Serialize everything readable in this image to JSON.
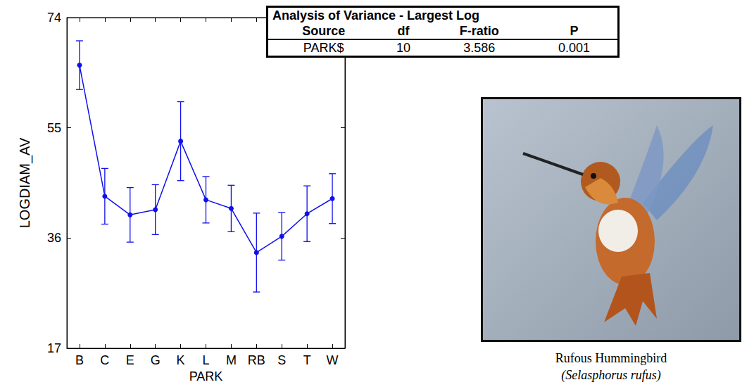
{
  "chart_data": {
    "type": "line",
    "xlabel": "PARK",
    "ylabel": "LOGDIAM_AV",
    "categories": [
      "B",
      "C",
      "E",
      "G",
      "K",
      "L",
      "M",
      "RB",
      "S",
      "T",
      "W"
    ],
    "values": [
      65.8,
      43.2,
      40.0,
      40.9,
      52.7,
      42.6,
      41.1,
      33.5,
      36.3,
      40.2,
      42.8
    ],
    "errors": [
      4.2,
      4.8,
      4.7,
      4.3,
      6.8,
      4.0,
      4.0,
      6.8,
      4.1,
      4.8,
      4.3
    ],
    "color": "#1010ee",
    "marker": "circle",
    "grid": false,
    "ylim": [
      17,
      74
    ],
    "yticks": [
      17,
      36,
      55,
      74
    ]
  },
  "table": {
    "title": "Analysis of Variance - Largest Log",
    "header": [
      "Source",
      "df",
      "F-ratio",
      "P"
    ],
    "rows": [
      [
        "PARK$",
        "10",
        "3.586",
        "0.001"
      ]
    ]
  },
  "image_caption": [
    "Rufous Hummingbird",
    "(Selasphorus rufus)"
  ]
}
